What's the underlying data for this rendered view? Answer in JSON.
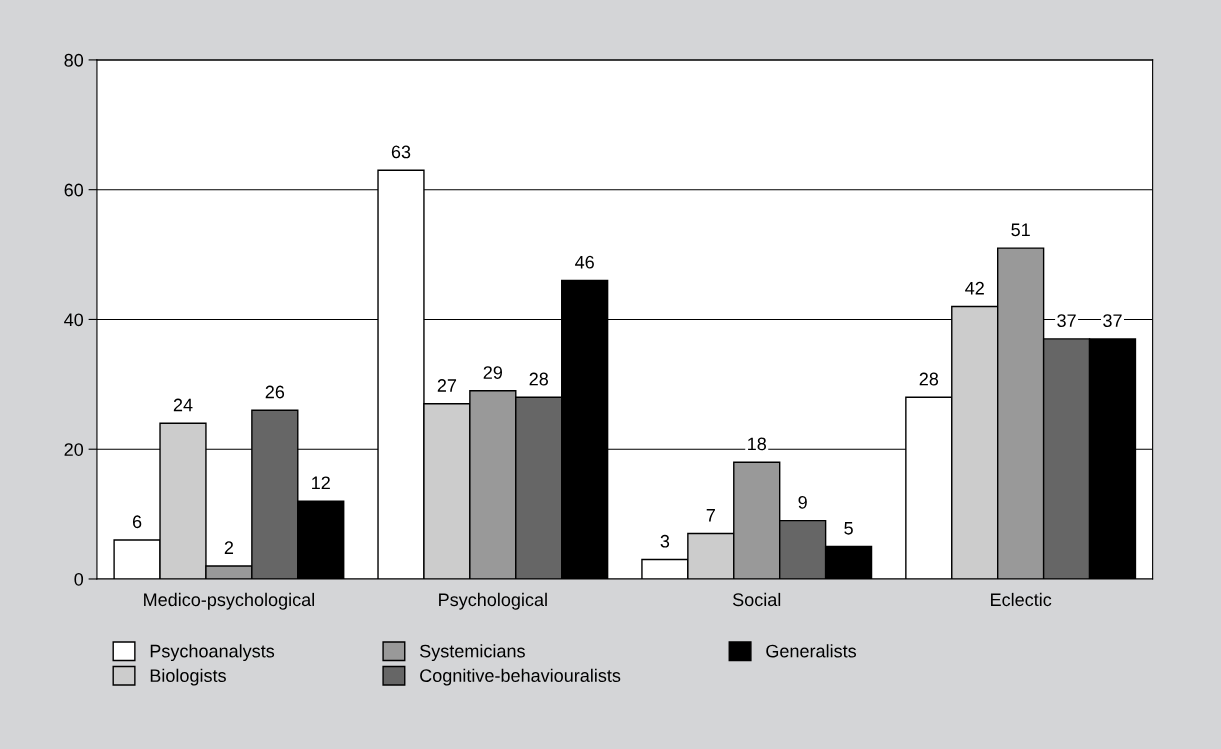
{
  "chart_data": {
    "type": "bar",
    "categories": [
      "Medico-psychological",
      "Psychological",
      "Social",
      "Eclectic"
    ],
    "series": [
      {
        "name": "Psychoanalysts",
        "color": "#ffffff",
        "values": [
          6,
          63,
          3,
          28
        ]
      },
      {
        "name": "Biologists",
        "color": "#cccccc",
        "values": [
          24,
          27,
          7,
          42
        ]
      },
      {
        "name": "Systemicians",
        "color": "#999999",
        "values": [
          2,
          29,
          18,
          51
        ]
      },
      {
        "name": "Cognitive-behaviouralists",
        "color": "#666666",
        "values": [
          26,
          28,
          9,
          37
        ]
      },
      {
        "name": "Generalists",
        "color": "#000000",
        "values": [
          12,
          46,
          5,
          37
        ]
      }
    ],
    "ylim": [
      0,
      80
    ],
    "yticks": [
      0,
      20,
      40,
      60,
      80
    ],
    "grid": "y",
    "legend": "bottom",
    "data_labels": true
  }
}
